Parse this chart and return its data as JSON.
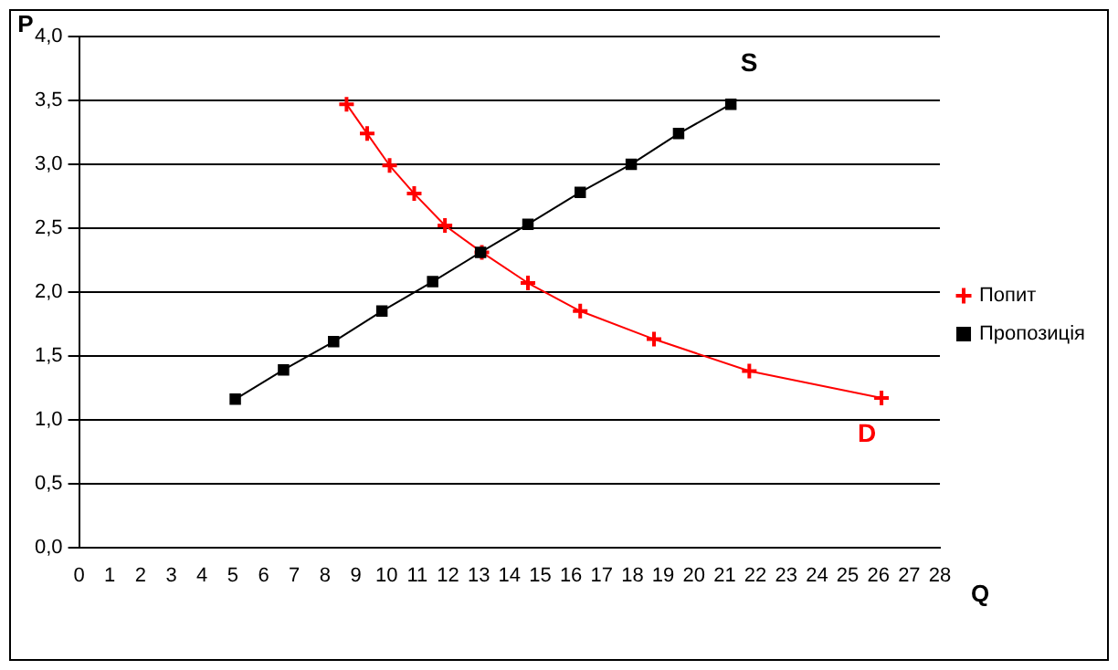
{
  "chart_data": {
    "type": "line",
    "xlabel": "Q",
    "ylabel": "P",
    "xlim": [
      0,
      28
    ],
    "xticks": [
      0,
      1,
      2,
      3,
      4,
      5,
      6,
      7,
      8,
      9,
      10,
      11,
      12,
      13,
      14,
      15,
      16,
      17,
      18,
      19,
      20,
      21,
      22,
      23,
      24,
      25,
      26,
      27,
      28
    ],
    "ylim": [
      0,
      4
    ],
    "yticks": [
      {
        "value": 0,
        "label": "0,0"
      },
      {
        "value": 0.5,
        "label": "0,5"
      },
      {
        "value": 1,
        "label": "1,0"
      },
      {
        "value": 1.5,
        "label": "1,5"
      },
      {
        "value": 2,
        "label": "2,0"
      },
      {
        "value": 2.5,
        "label": "2,5"
      },
      {
        "value": 3,
        "label": "3,0"
      },
      {
        "value": 3.5,
        "label": "3,5"
      },
      {
        "value": 4,
        "label": "4,0"
      }
    ],
    "grid": "y",
    "legend": "right",
    "line_style": "solid",
    "series": [
      {
        "name": "Попит",
        "color": "#ff0000",
        "marker": "cross",
        "x": [
          8.7,
          9.37,
          10.1,
          10.9,
          11.9,
          13.1,
          14.6,
          16.3,
          18.7,
          21.8,
          26.1
        ],
        "values": [
          3.47,
          3.24,
          2.99,
          2.77,
          2.52,
          2.31,
          2.07,
          1.85,
          1.63,
          1.38,
          1.17
        ]
      },
      {
        "name": "Пропозиція",
        "color": "#000000",
        "marker": "square",
        "x": [
          5.08,
          6.65,
          8.28,
          9.85,
          11.5,
          13.06,
          14.6,
          16.3,
          17.96,
          19.5,
          21.2
        ],
        "values": [
          1.16,
          1.39,
          1.61,
          1.85,
          2.08,
          2.31,
          2.53,
          2.78,
          3.0,
          3.24,
          3.47
        ]
      }
    ],
    "annotations": [
      "D",
      "S"
    ]
  }
}
